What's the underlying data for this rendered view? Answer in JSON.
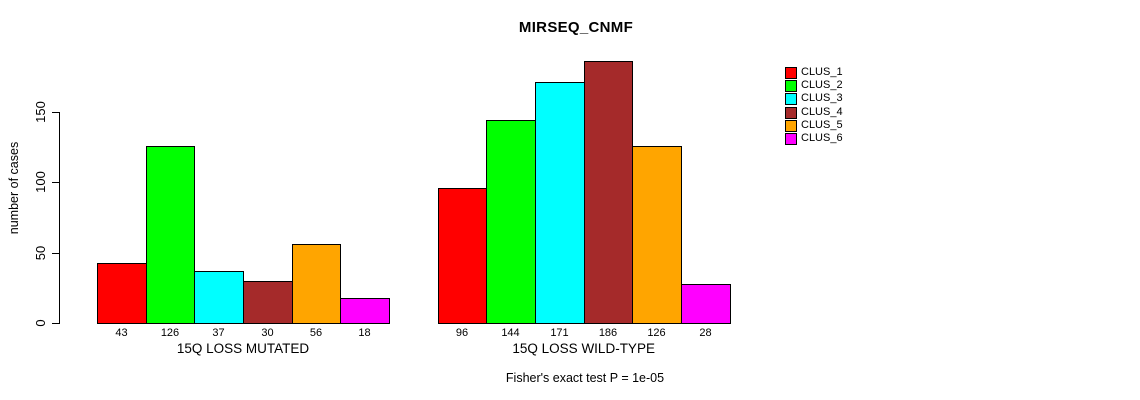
{
  "chart_data": {
    "type": "bar",
    "title": "MIRSEQ_CNMF",
    "ylabel": "number of cases",
    "xlabel": "",
    "annotation": "Fisher's exact test P = 1e-05",
    "yticks": [
      0,
      50,
      100,
      150
    ],
    "ylim": [
      0,
      190
    ],
    "grid": false,
    "legend_position": "right-outside",
    "categories": [
      "15Q LOSS MUTATED",
      "15Q LOSS WILD-TYPE"
    ],
    "series": [
      {
        "name": "CLUS_1",
        "color": "#FF0000",
        "values": [
          43,
          96
        ]
      },
      {
        "name": "CLUS_2",
        "color": "#00FF00",
        "values": [
          126,
          144
        ]
      },
      {
        "name": "CLUS_3",
        "color": "#00FFFF",
        "values": [
          37,
          171
        ]
      },
      {
        "name": "CLUS_4",
        "color": "#A52A2A",
        "values": [
          30,
          186
        ]
      },
      {
        "name": "CLUS_5",
        "color": "#FFA500",
        "values": [
          56,
          126
        ]
      },
      {
        "name": "CLUS_6",
        "color": "#FF00FF",
        "values": [
          18,
          28
        ]
      }
    ],
    "bar_value_labels": {
      "15Q LOSS MUTATED": [
        43,
        126,
        37,
        30,
        56,
        18
      ],
      "15Q LOSS WILD-TYPE": [
        96,
        144,
        171,
        186,
        126,
        28
      ]
    }
  }
}
